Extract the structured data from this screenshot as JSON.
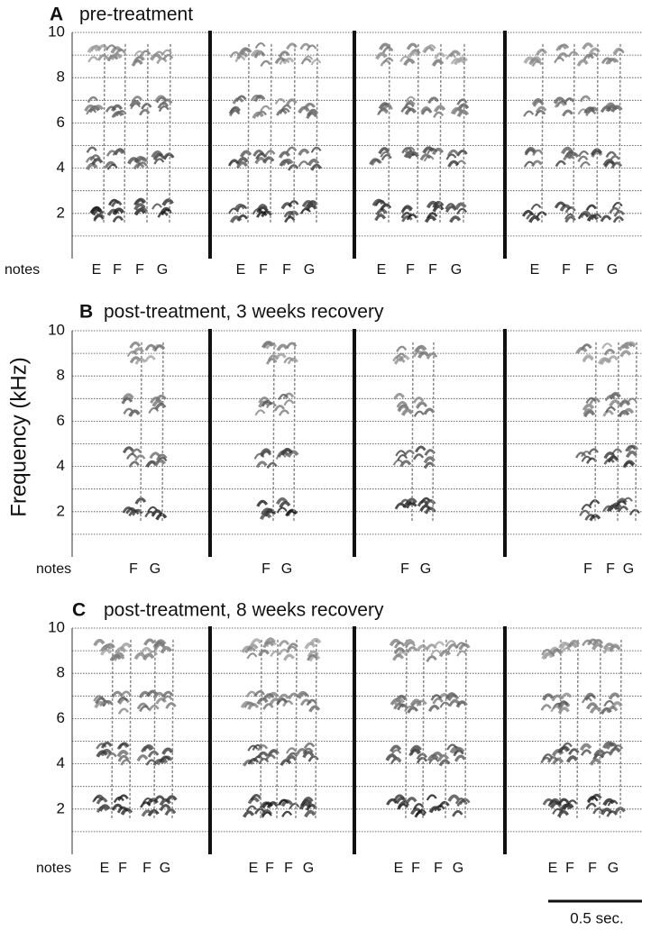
{
  "y_axis_label": "Frequency (kHz)",
  "notes_label": "notes",
  "scale_bar_label": "0.5 sec.",
  "yticks": [
    2,
    4,
    6,
    8,
    10
  ],
  "panels": [
    {
      "letter": "A",
      "title": "pre-treatment",
      "songs": [
        [
          "E",
          "F",
          "F",
          "G"
        ],
        [
          "E",
          "F",
          "F",
          "G"
        ],
        [
          "E",
          "F",
          "F",
          "G"
        ],
        [
          "E",
          "F",
          "F",
          "G"
        ]
      ]
    },
    {
      "letter": "B",
      "title": "post-treatment, 3 weeks recovery",
      "songs": [
        [
          "F",
          "G"
        ],
        [
          "F",
          "G"
        ],
        [
          "F",
          "G"
        ],
        [
          "F",
          "F",
          "G"
        ]
      ]
    },
    {
      "letter": "C",
      "title": "post-treatment, 8 weeks recovery",
      "songs": [
        [
          "E",
          "F",
          "F",
          "G"
        ],
        [
          "E",
          "F",
          "F",
          "G"
        ],
        [
          "E",
          "F",
          "F",
          "G"
        ],
        [
          "E",
          "F",
          "F",
          "G"
        ]
      ]
    }
  ]
}
